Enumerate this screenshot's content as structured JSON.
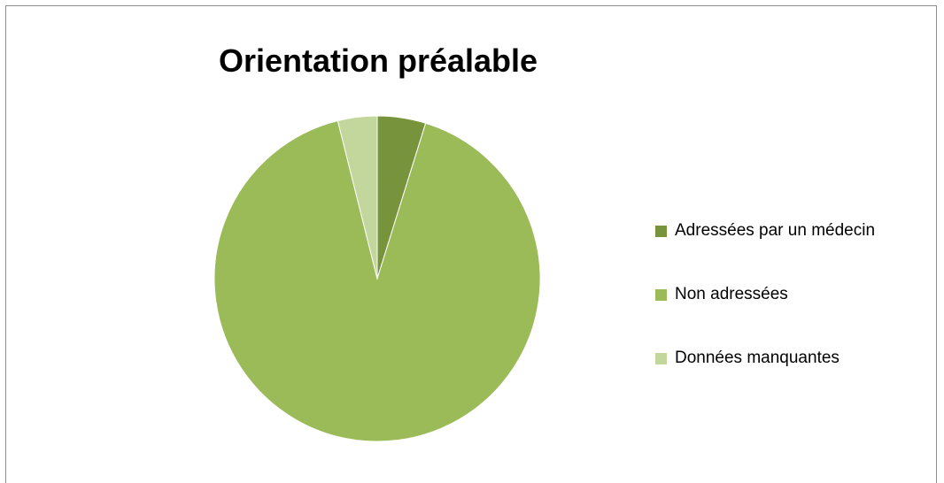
{
  "chart_data": {
    "type": "pie",
    "title": "Orientation préalable",
    "categories": [
      "Adressées par un médecin",
      "Non adressées",
      "Données manquantes"
    ],
    "values": [
      4.8,
      91.3,
      3.9
    ],
    "colors": [
      "#77933c",
      "#9bbb59",
      "#c3d69b"
    ],
    "legend_position": "right",
    "start_angle_deg": 0,
    "direction": "clockwise"
  }
}
